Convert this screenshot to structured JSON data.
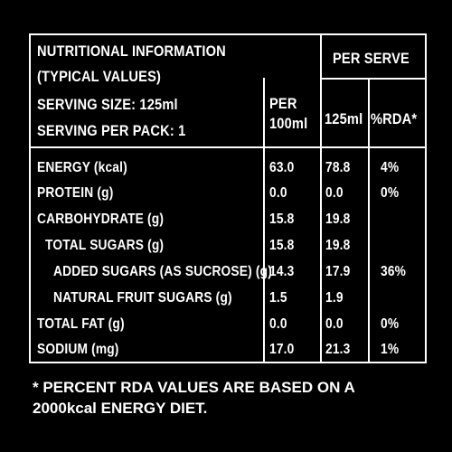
{
  "header": {
    "title_line1": "NUTRITIONAL INFORMATION",
    "title_line2": "(TYPICAL VALUES)",
    "serving_size": "SERVING SIZE: 125ml",
    "serving_per_pack": "SERVING PER PACK: 1",
    "per_serve": "PER SERVE",
    "col_per_100_line1": "PER",
    "col_per_100_line2": "100ml",
    "col_125": "125ml",
    "col_rda": "%RDA*"
  },
  "rows": [
    {
      "label": "ENERGY (kcal)",
      "per100": "63.0",
      "per125": "78.8",
      "rda": "4%"
    },
    {
      "label": "PROTEIN (g)",
      "per100": "0.0",
      "per125": "0.0",
      "rda": "0%"
    },
    {
      "label": "CARBOHYDRATE (g)",
      "per100": "15.8",
      "per125": "19.8",
      "rda": ""
    },
    {
      "label": "TOTAL SUGARS (g)",
      "per100": "15.8",
      "per125": "19.8",
      "rda": ""
    },
    {
      "label": "ADDED SUGARS (AS SUCROSE) (g)",
      "per100": "14.3",
      "per125": "17.9",
      "rda": "36%"
    },
    {
      "label": "NATURAL FRUIT SUGARS (g)",
      "per100": "1.5",
      "per125": "1.9",
      "rda": ""
    },
    {
      "label": "TOTAL FAT (g)",
      "per100": "0.0",
      "per125": "0.0",
      "rda": "0%"
    },
    {
      "label": "SODIUM (mg)",
      "per100": "17.0",
      "per125": "21.3",
      "rda": "1%"
    }
  ],
  "footnote": "* PERCENT RDA VALUES ARE BASED ON A 2000kcal ENERGY DIET."
}
